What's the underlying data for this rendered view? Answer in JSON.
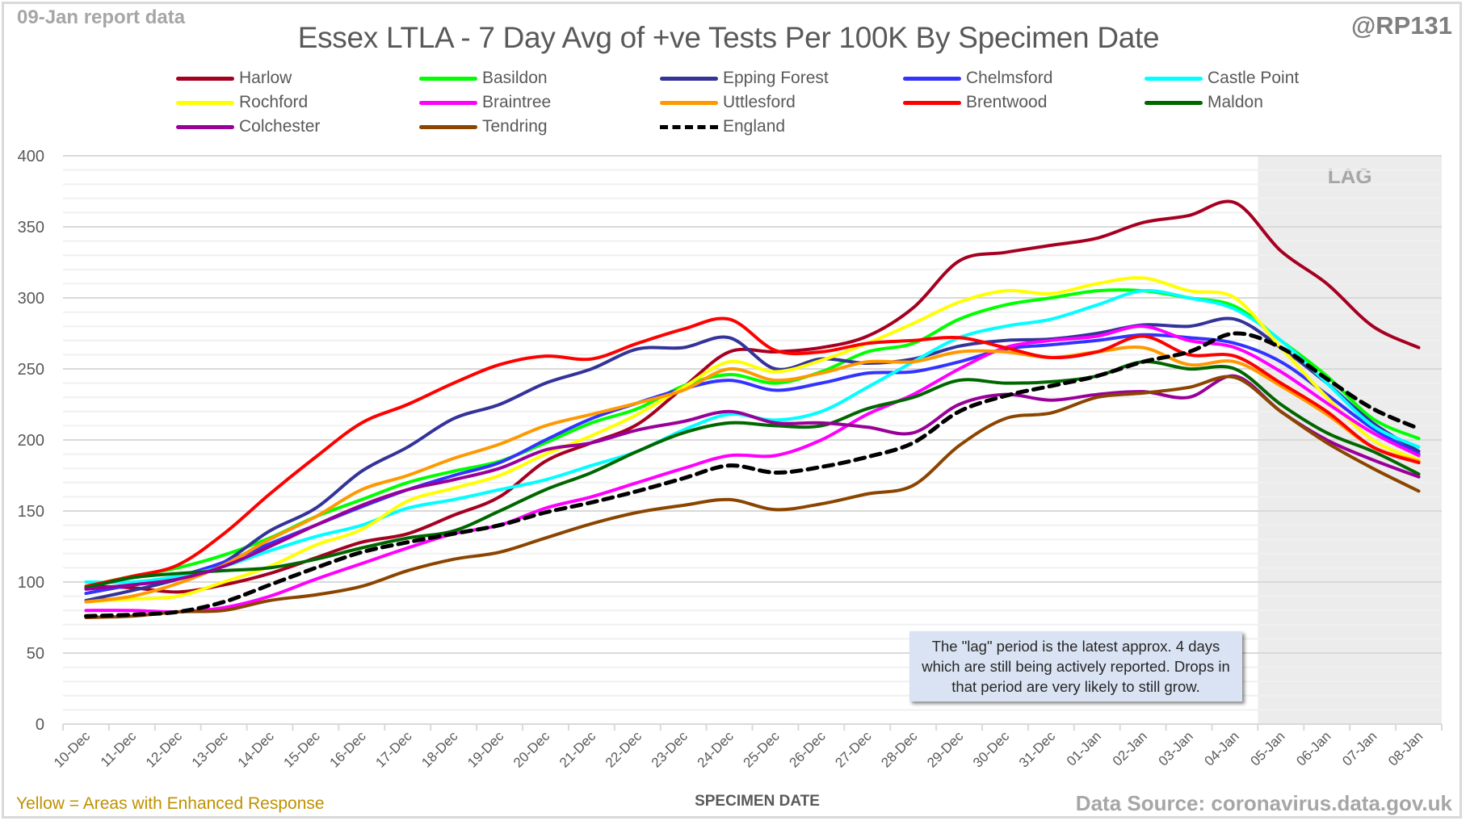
{
  "header": {
    "report_date": "09-Jan report data",
    "handle": "@RP131",
    "title": "Essex LTLA - 7 Day Avg of +ve Tests Per 100K By Specimen Date"
  },
  "footer": {
    "footnote": "Yellow = Areas with Enhanced Response",
    "source": "Data Source: coronavirus.data.gov.uk"
  },
  "annotation": {
    "text": "The \"lag\" period is the latest approx. 4 days which are still being actively reported.  Drops in that period are very likely to still grow."
  },
  "chart_data": {
    "type": "line",
    "title": "Essex LTLA - 7 Day Avg of +ve Tests Per 100K By Specimen Date",
    "xlabel": "SPECIMEN DATE",
    "ylabel": "",
    "ylim": [
      0,
      400
    ],
    "yticks": [
      0,
      50,
      100,
      150,
      200,
      250,
      300,
      350,
      400
    ],
    "minor_grid_step": 10,
    "grid": true,
    "legend_position": "top",
    "lag_region": {
      "label": "LAG",
      "from": "05-Jan",
      "to": "08-Jan",
      "color": "#ececec"
    },
    "categories": [
      "10-Dec",
      "11-Dec",
      "12-Dec",
      "13-Dec",
      "14-Dec",
      "15-Dec",
      "16-Dec",
      "17-Dec",
      "18-Dec",
      "19-Dec",
      "20-Dec",
      "21-Dec",
      "22-Dec",
      "23-Dec",
      "24-Dec",
      "25-Dec",
      "26-Dec",
      "27-Dec",
      "28-Dec",
      "29-Dec",
      "30-Dec",
      "31-Dec",
      "01-Jan",
      "02-Jan",
      "03-Jan",
      "04-Jan",
      "05-Jan",
      "06-Jan",
      "07-Jan",
      "08-Jan"
    ],
    "series": [
      {
        "name": "Harlow",
        "color": "#a50021",
        "dashed": false,
        "values": [
          97,
          96,
          93,
          98,
          106,
          117,
          128,
          134,
          147,
          160,
          185,
          198,
          211,
          237,
          262,
          262,
          265,
          273,
          293,
          326,
          332,
          337,
          342,
          353,
          358,
          367,
          333,
          310,
          280,
          265
        ]
      },
      {
        "name": "Basildon",
        "color": "#00ff00",
        "dashed": false,
        "values": [
          97,
          104,
          110,
          119,
          131,
          146,
          158,
          170,
          178,
          185,
          198,
          212,
          222,
          238,
          246,
          240,
          248,
          262,
          268,
          285,
          295,
          300,
          305,
          305,
          300,
          294,
          270,
          245,
          215,
          201
        ]
      },
      {
        "name": "Epping Forest",
        "color": "#333399",
        "dashed": false,
        "values": [
          87,
          94,
          102,
          114,
          136,
          152,
          178,
          195,
          215,
          225,
          240,
          250,
          264,
          265,
          272,
          250,
          257,
          254,
          257,
          266,
          270,
          271,
          275,
          281,
          280,
          285,
          265,
          240,
          212,
          192
        ]
      },
      {
        "name": "Chelmsford",
        "color": "#3333ff",
        "dashed": false,
        "values": [
          92,
          98,
          104,
          114,
          127,
          140,
          153,
          165,
          175,
          184,
          200,
          215,
          226,
          236,
          242,
          235,
          240,
          247,
          248,
          255,
          264,
          267,
          270,
          274,
          272,
          268,
          255,
          232,
          208,
          190
        ]
      },
      {
        "name": "Castle Point",
        "color": "#00ffff",
        "dashed": false,
        "values": [
          100,
          100,
          104,
          111,
          122,
          132,
          140,
          152,
          158,
          165,
          172,
          182,
          192,
          207,
          218,
          214,
          220,
          237,
          255,
          272,
          280,
          285,
          295,
          305,
          300,
          292,
          270,
          240,
          210,
          195
        ]
      },
      {
        "name": "Rochford",
        "color": "#ffff00",
        "dashed": false,
        "values": [
          86,
          88,
          90,
          100,
          111,
          126,
          137,
          157,
          166,
          175,
          190,
          203,
          218,
          237,
          255,
          248,
          256,
          268,
          282,
          297,
          305,
          303,
          310,
          314,
          305,
          300,
          265,
          230,
          200,
          186
        ]
      },
      {
        "name": "Braintree",
        "color": "#ff00ff",
        "dashed": false,
        "values": [
          80,
          80,
          79,
          82,
          90,
          102,
          113,
          124,
          134,
          140,
          152,
          160,
          170,
          180,
          189,
          189,
          200,
          218,
          232,
          250,
          265,
          270,
          273,
          280,
          270,
          265,
          248,
          226,
          205,
          189
        ]
      },
      {
        "name": "Uttlesford",
        "color": "#ff9900",
        "dashed": false,
        "values": [
          86,
          90,
          99,
          112,
          130,
          146,
          165,
          175,
          187,
          197,
          210,
          218,
          226,
          235,
          250,
          242,
          247,
          255,
          255,
          262,
          262,
          258,
          262,
          265,
          253,
          255,
          238,
          218,
          195,
          185
        ]
      },
      {
        "name": "Brentwood",
        "color": "#ff0000",
        "dashed": false,
        "values": [
          97,
          104,
          112,
          134,
          162,
          188,
          212,
          225,
          240,
          253,
          259,
          257,
          268,
          278,
          285,
          263,
          262,
          268,
          270,
          272,
          265,
          258,
          262,
          273,
          260,
          259,
          240,
          220,
          195,
          184
        ]
      },
      {
        "name": "Maldon",
        "color": "#006600",
        "dashed": false,
        "values": [
          96,
          103,
          106,
          108,
          110,
          116,
          124,
          131,
          136,
          150,
          165,
          177,
          192,
          205,
          212,
          210,
          210,
          222,
          230,
          242,
          240,
          241,
          245,
          255,
          250,
          250,
          225,
          205,
          192,
          176
        ]
      },
      {
        "name": "Colchester",
        "color": "#990099",
        "dashed": false,
        "values": [
          95,
          98,
          102,
          111,
          125,
          140,
          154,
          165,
          172,
          180,
          193,
          198,
          207,
          213,
          220,
          212,
          212,
          209,
          205,
          225,
          232,
          228,
          232,
          234,
          230,
          245,
          220,
          200,
          186,
          174
        ]
      },
      {
        "name": "Tendring",
        "color": "#8b4500",
        "dashed": false,
        "values": [
          75,
          76,
          79,
          80,
          87,
          91,
          97,
          108,
          116,
          121,
          131,
          141,
          149,
          154,
          158,
          151,
          155,
          162,
          168,
          196,
          215,
          219,
          230,
          233,
          237,
          244,
          220,
          198,
          180,
          164
        ]
      },
      {
        "name": "England",
        "color": "#000000",
        "dashed": true,
        "values": [
          76,
          77,
          79,
          86,
          98,
          110,
          121,
          128,
          134,
          140,
          149,
          156,
          164,
          173,
          182,
          177,
          181,
          188,
          198,
          220,
          231,
          238,
          245,
          255,
          262,
          275,
          265,
          243,
          222,
          208
        ]
      }
    ]
  }
}
